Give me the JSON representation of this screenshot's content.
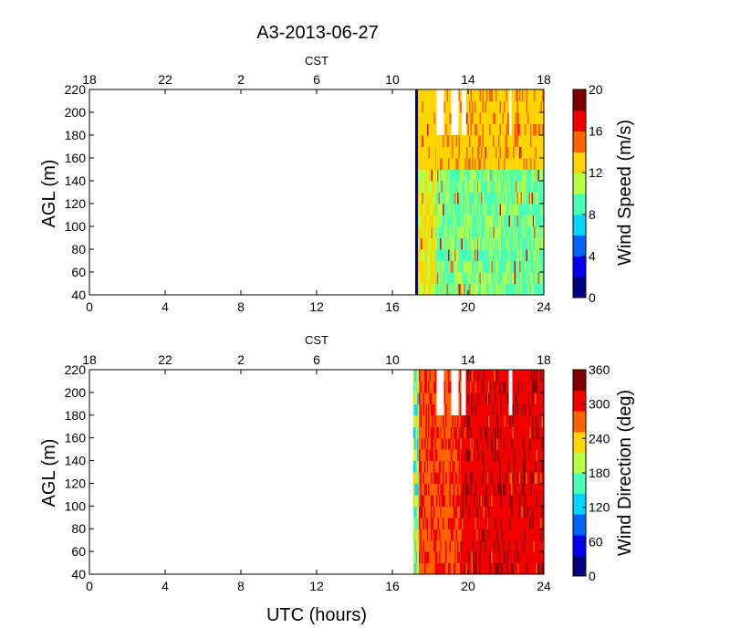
{
  "figure": {
    "title": "A3-2013-06-27"
  },
  "chart_data": [
    {
      "type": "heatmap",
      "x_label": "",
      "y_label": "AGL (m)",
      "top_axis_label": "CST",
      "x_ticks": [
        0,
        4,
        8,
        12,
        16,
        20,
        24
      ],
      "x_top_ticks": [
        "18",
        "22",
        "2",
        "6",
        "10",
        "14",
        "18"
      ],
      "x_range": [
        0,
        24
      ],
      "y_ticks": [
        40,
        60,
        80,
        100,
        120,
        140,
        160,
        180,
        200,
        220
      ],
      "y_range": [
        40,
        220
      ],
      "colorbar": {
        "label": "Wind Speed (m/s)",
        "range": [
          0,
          20
        ],
        "ticks": [
          0,
          4,
          8,
          12,
          16,
          20
        ],
        "colormap": "jet"
      },
      "data_start_utc": 17.2,
      "data_end_utc": 24,
      "gaps": [
        {
          "x": [
            18.3,
            18.7
          ],
          "y": [
            180,
            220
          ]
        },
        {
          "x": [
            19.05,
            19.5
          ],
          "y": [
            180,
            220
          ]
        },
        {
          "x": [
            19.6,
            19.9
          ],
          "y": [
            180,
            220
          ]
        },
        {
          "x": [
            22.15,
            22.3
          ],
          "y": [
            180,
            220
          ]
        }
      ],
      "value_bands": [
        {
          "x": [
            17.2,
            17.35
          ],
          "value": 0.5
        },
        {
          "x": [
            17.35,
            18.3
          ],
          "value": 11.5
        },
        {
          "x": [
            18.3,
            24
          ],
          "value": 10.5
        }
      ],
      "notes": "upper layer (~160-220 m) 12-14 m/s, lower layer 8-10 m/s"
    },
    {
      "type": "heatmap",
      "x_label": "UTC (hours)",
      "y_label": "AGL (m)",
      "top_axis_label": "CST",
      "x_ticks": [
        0,
        4,
        8,
        12,
        16,
        20,
        24
      ],
      "x_top_ticks": [
        "18",
        "22",
        "2",
        "6",
        "10",
        "14",
        "18"
      ],
      "x_range": [
        0,
        24
      ],
      "y_ticks": [
        40,
        60,
        80,
        100,
        120,
        140,
        160,
        180,
        200,
        220
      ],
      "y_range": [
        40,
        220
      ],
      "colorbar": {
        "label": "Wind Direction (deg)",
        "range": [
          0,
          360
        ],
        "ticks": [
          0,
          60,
          120,
          180,
          240,
          300,
          360
        ],
        "colormap": "jet"
      },
      "data_start_utc": 17.1,
      "data_end_utc": 24,
      "gaps": [
        {
          "x": [
            18.3,
            18.7
          ],
          "y": [
            180,
            220
          ]
        },
        {
          "x": [
            19.05,
            19.5
          ],
          "y": [
            180,
            220
          ]
        },
        {
          "x": [
            19.6,
            19.9
          ],
          "y": [
            180,
            220
          ]
        },
        {
          "x": [
            22.15,
            22.3
          ],
          "y": [
            180,
            220
          ]
        }
      ],
      "value_bands": [
        {
          "x": [
            17.1,
            17.4
          ],
          "value": 180
        },
        {
          "x": [
            17.4,
            19.6
          ],
          "value": 285
        },
        {
          "x": [
            19.6,
            24
          ],
          "value": 315
        }
      ]
    }
  ]
}
